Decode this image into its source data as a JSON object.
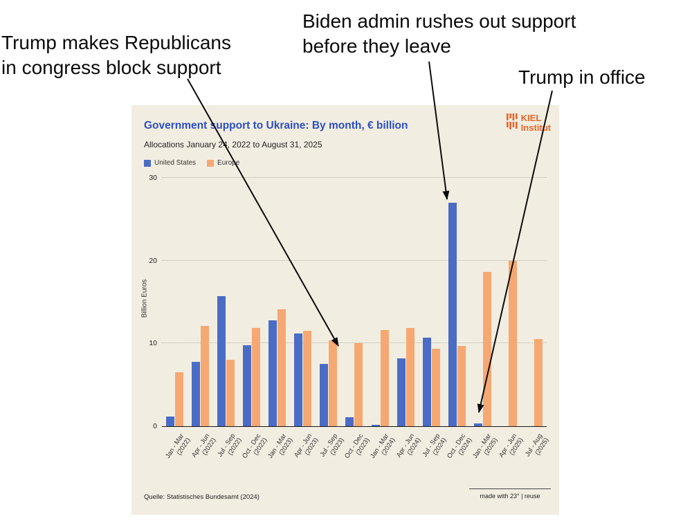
{
  "annotations": {
    "block_support": "Trump makes Republicans\nin congress block support",
    "biden_rush": "Biden admin rushes out support\nbefore they leave",
    "trump_office": "Trump in office"
  },
  "chart": {
    "source": "Quelle: Statistisches Bundesamt (2024)",
    "credit": "made with 23° | reuse",
    "logo_line1": "KIEL",
    "logo_line2": "Institut"
  },
  "colors": {
    "card_background": "#f2ede1",
    "title_blue": "#2b4fc1",
    "logo_orange": "#e4662c",
    "annotation_black": "#0a0a0a"
  },
  "chart_data": {
    "type": "bar",
    "title": "Government support to Ukraine: By month, € billion",
    "subtitle": "Allocations January 24, 2022 to August 31, 2025",
    "ylabel": "Billion Euros",
    "xlabel": "",
    "ylim": [
      0,
      30
    ],
    "yticks": [
      0,
      10,
      20,
      30
    ],
    "grid": "horizontal-dotted",
    "legend_position": "top-left",
    "categories": [
      "Jan - Mar\n(2022)",
      "Apr - Jun\n(2022)",
      "Jul - Sep\n(2022)",
      "Oct - Dec\n(2022)",
      "Jan - Mar\n(2023)",
      "Apr - Jun\n(2023)",
      "Jul - Sep\n(2023)",
      "Oct - Dec\n(2023)",
      "Jan - Mar\n(2024)",
      "Apr - Jun\n(2024)",
      "Jul - Sep\n(2024)",
      "Oct - Dec\n(2024)",
      "Jan - Mar\n(2025)",
      "Apr - Jun\n(2025)",
      "Jul - Aug\n(2025)"
    ],
    "series": [
      {
        "name": "United States",
        "color": "#4a6cc4",
        "values": [
          1.2,
          7.8,
          15.7,
          9.8,
          12.8,
          11.2,
          7.5,
          1.1,
          0.2,
          8.2,
          10.7,
          27.0,
          0.3,
          0,
          0
        ]
      },
      {
        "name": "Europe",
        "color": "#f6a873",
        "values": [
          6.5,
          12.1,
          8.0,
          11.9,
          14.1,
          11.5,
          10.4,
          10.0,
          11.6,
          11.9,
          9.4,
          9.7,
          18.6,
          20.0,
          10.5
        ]
      }
    ]
  }
}
